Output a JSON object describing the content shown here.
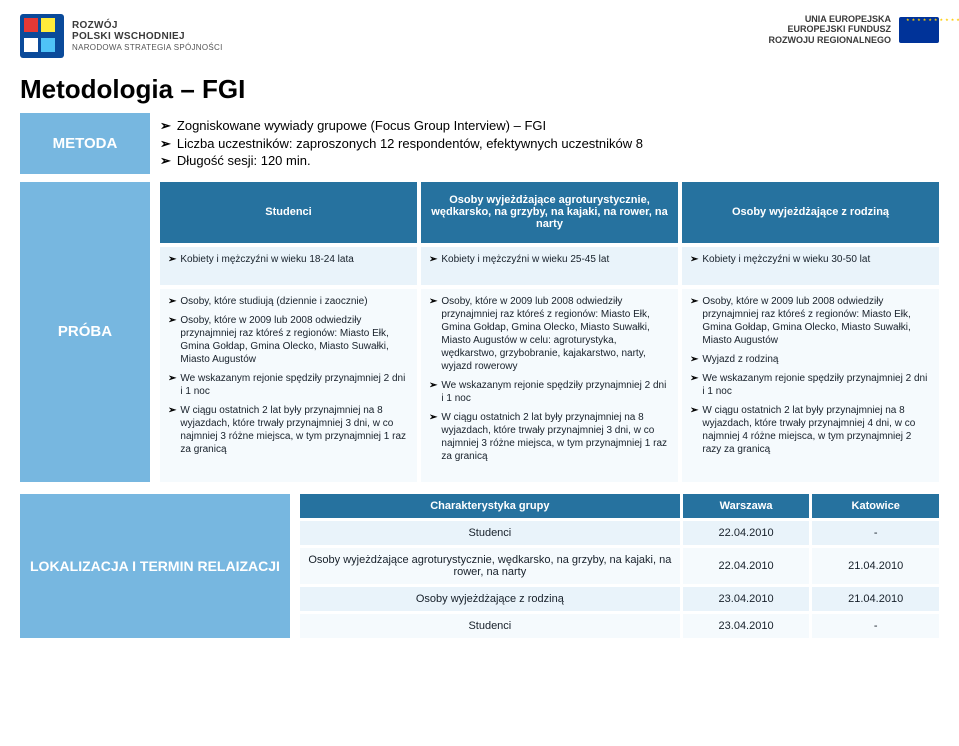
{
  "header": {
    "logo_left_line1": "ROZWÓJ",
    "logo_left_line2": "POLSKI WSCHODNIEJ",
    "logo_left_sub": "NARODOWA STRATEGIA SPÓJNOŚCI",
    "logo_right_line1": "UNIA EUROPEJSKA",
    "logo_right_line2": "EUROPEJSKI FUNDUSZ",
    "logo_right_line3": "ROZWOJU REGIONALNEGO"
  },
  "title": "Metodologia – FGI",
  "metoda": {
    "label": "METODA",
    "items": [
      "Zogniskowane wywiady grupowe (Focus Group Interview) – FGI",
      "Liczba uczestników: zaproszonych 12 respondentów, efektywnych uczestników 8",
      "Długość sesji: 120 min."
    ]
  },
  "proba": {
    "label": "PRÓBA",
    "col_headers": [
      "Studenci",
      "Osoby wyjeżdżające agroturystycznie, wędkarsko, na grzyby, na kajaki, na rower, na narty",
      "Osoby wyjeżdżające z rodziną"
    ],
    "age_row": [
      "Kobiety i mężczyźni w wieku 18-24 lata",
      "Kobiety i mężczyźni w wieku 25-45 lat",
      "Kobiety i mężczyźni w wieku 30-50 lat"
    ],
    "col1_items": [
      "Osoby, które studiują (dziennie i zaocznie)",
      "Osoby, które w 2009 lub 2008 odwiedziły przynajmniej raz któreś z regionów: Miasto Ełk, Gmina Gołdap, Gmina Olecko, Miasto Suwałki, Miasto Augustów",
      "We wskazanym rejonie spędziły przynajmniej 2 dni i 1 noc",
      "W ciągu ostatnich 2 lat były przynajmniej na 8 wyjazdach, które trwały przynajmniej 3 dni, w co najmniej 3 różne miejsca, w tym przynajmniej 1 raz za granicą"
    ],
    "col2_items": [
      "Osoby, które w 2009 lub 2008 odwiedziły przynajmniej raz któreś z regionów: Miasto Ełk, Gmina Gołdap, Gmina Olecko, Miasto Suwałki, Miasto Augustów w celu: agroturystyka, wędkarstwo, grzybobranie, kajakarstwo, narty, wyjazd rowerowy",
      "We wskazanym rejonie spędziły przynajmniej 2 dni i 1 noc",
      "W ciągu ostatnich 2 lat były przynajmniej na 8 wyjazdach, które trwały przynajmniej 3 dni, w co najmniej 3 różne miejsca, w tym przynajmniej 1 raz za granicą"
    ],
    "col3_items": [
      "Osoby, które w 2009 lub 2008 odwiedziły przynajmniej raz któreś z regionów: Miasto Ełk, Gmina Gołdap, Gmina Olecko, Miasto Suwałki, Miasto Augustów",
      "Wyjazd z rodziną",
      "We wskazanym rejonie spędziły przynajmniej 2 dni i 1 noc",
      "W ciągu ostatnich 2 lat były przynajmniej na 8 wyjazdach, które trwały przynajmniej 4 dni, w co najmniej 4 różne miejsca, w tym przynajmniej 2 razy za granicą"
    ]
  },
  "lokalizacja": {
    "label": "LOKALIZACJA I TERMIN RELAIZACJI",
    "headers": [
      "Charakterystyka grupy",
      "Warszawa",
      "Katowice"
    ],
    "rows": [
      [
        "Studenci",
        "22.04.2010",
        "-"
      ],
      [
        "Osoby wyjeżdżające agroturystycznie, wędkarsko, na grzyby, na kajaki, na rower, na narty",
        "22.04.2010",
        "21.04.2010"
      ],
      [
        "Osoby wyjeżdżające z rodziną",
        "23.04.2010",
        "21.04.2010"
      ],
      [
        "Studenci",
        "23.04.2010",
        "-"
      ]
    ]
  },
  "colors": {
    "badge_bg": "#77b7e0",
    "header_bg": "#26729f",
    "cell_bg": "#e9f3fa",
    "cell_alt_bg": "#f5fafd"
  }
}
